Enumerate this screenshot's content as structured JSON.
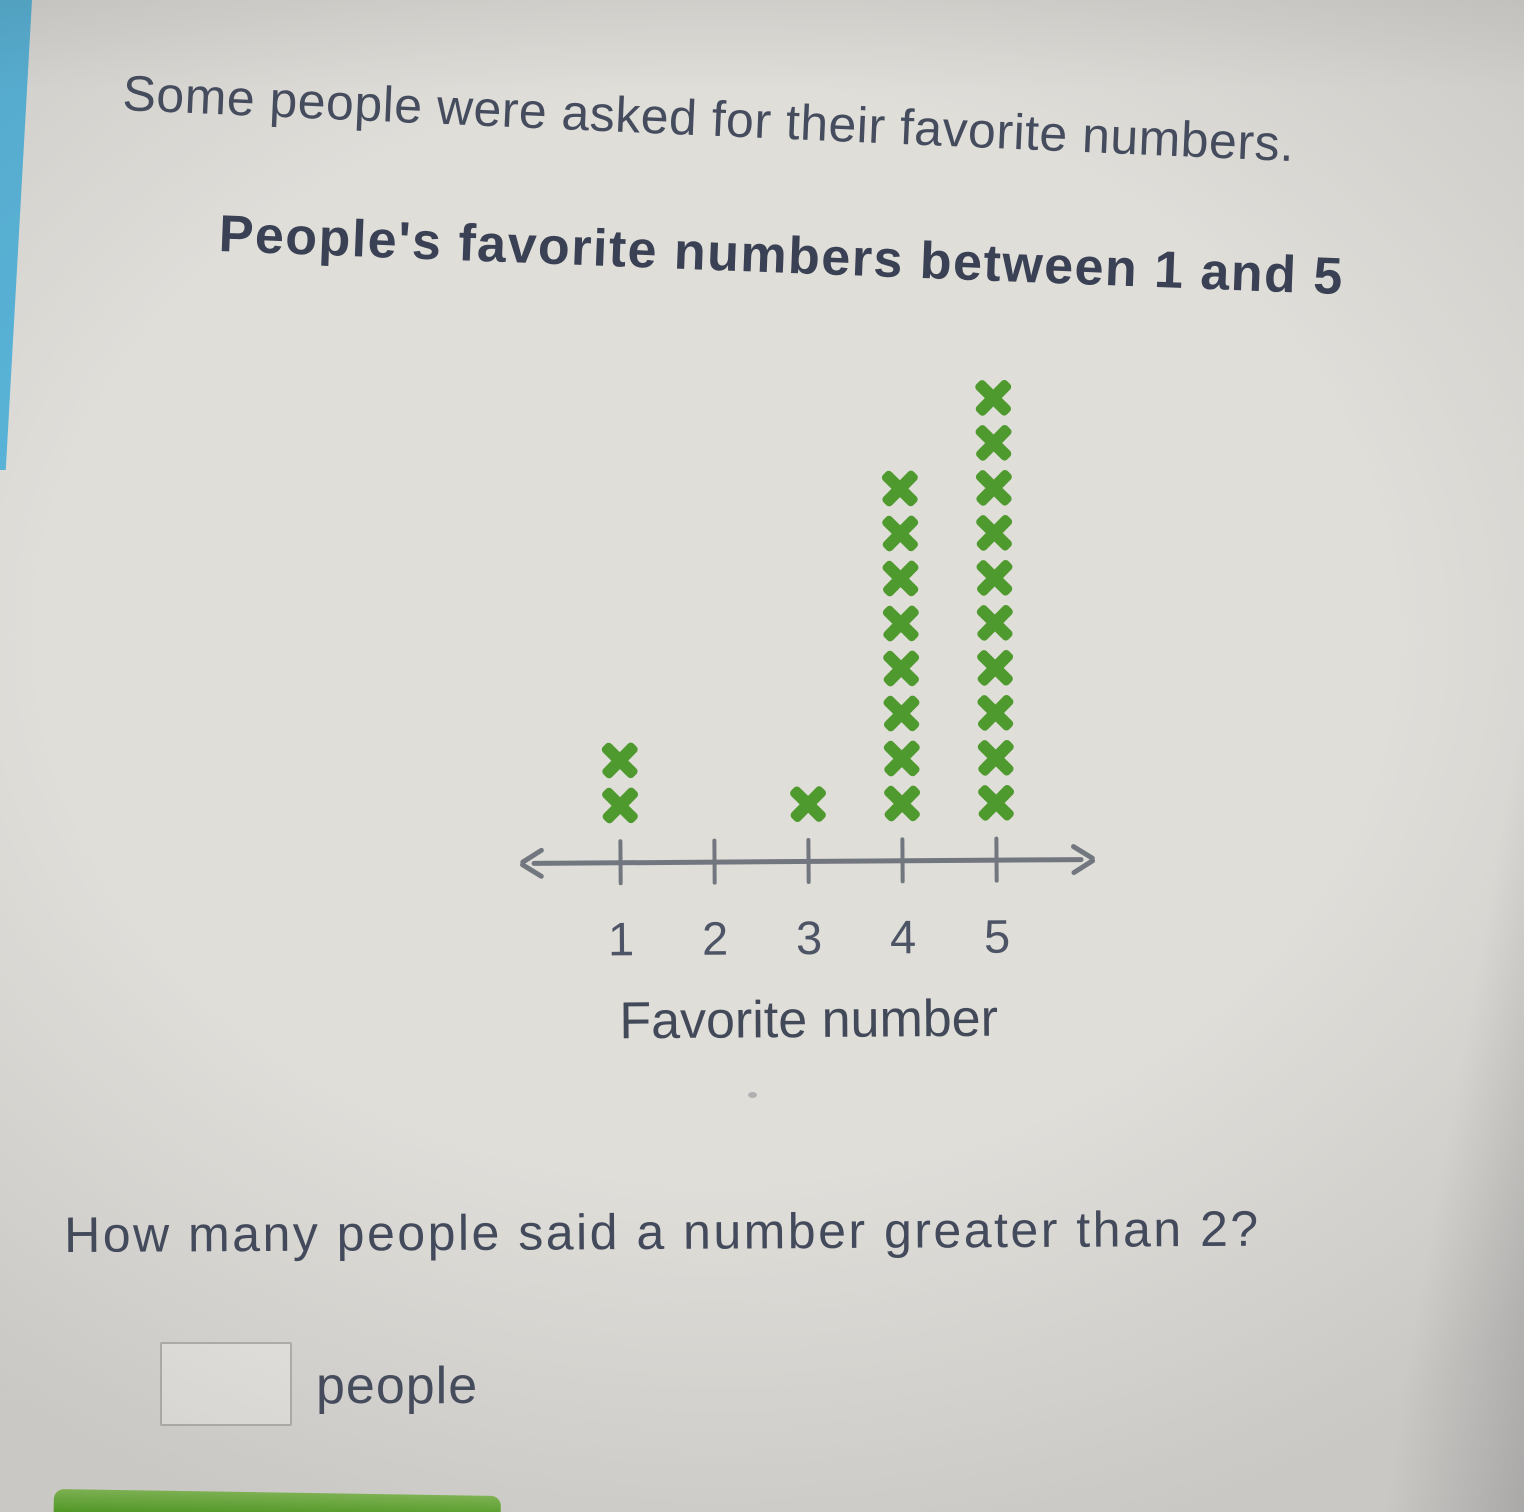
{
  "page": {
    "background": "#e0ded9",
    "edge_strip_color": "#58b5da",
    "text_color": "#454c5e"
  },
  "intro": "Some people were asked for their favorite numbers.",
  "chart_data": {
    "type": "bar",
    "variant": "line-plot-with-x-marks",
    "title": "People's favorite numbers between 1 and 5",
    "categories": [
      "1",
      "2",
      "3",
      "4",
      "5"
    ],
    "values": [
      2,
      0,
      1,
      8,
      10
    ],
    "xlabel": "Favorite number",
    "ylim": [
      0,
      10
    ],
    "grid": false,
    "legend": "none",
    "marker": {
      "symbol": "x",
      "color": "#4f9a2e"
    },
    "axis": {
      "color": "#72777f",
      "arrows": "both-ends"
    }
  },
  "question": "How many people said a number greater than 2?",
  "answer": {
    "value": "",
    "unit": "people"
  },
  "submit_button": {
    "color": "#50a31d"
  }
}
